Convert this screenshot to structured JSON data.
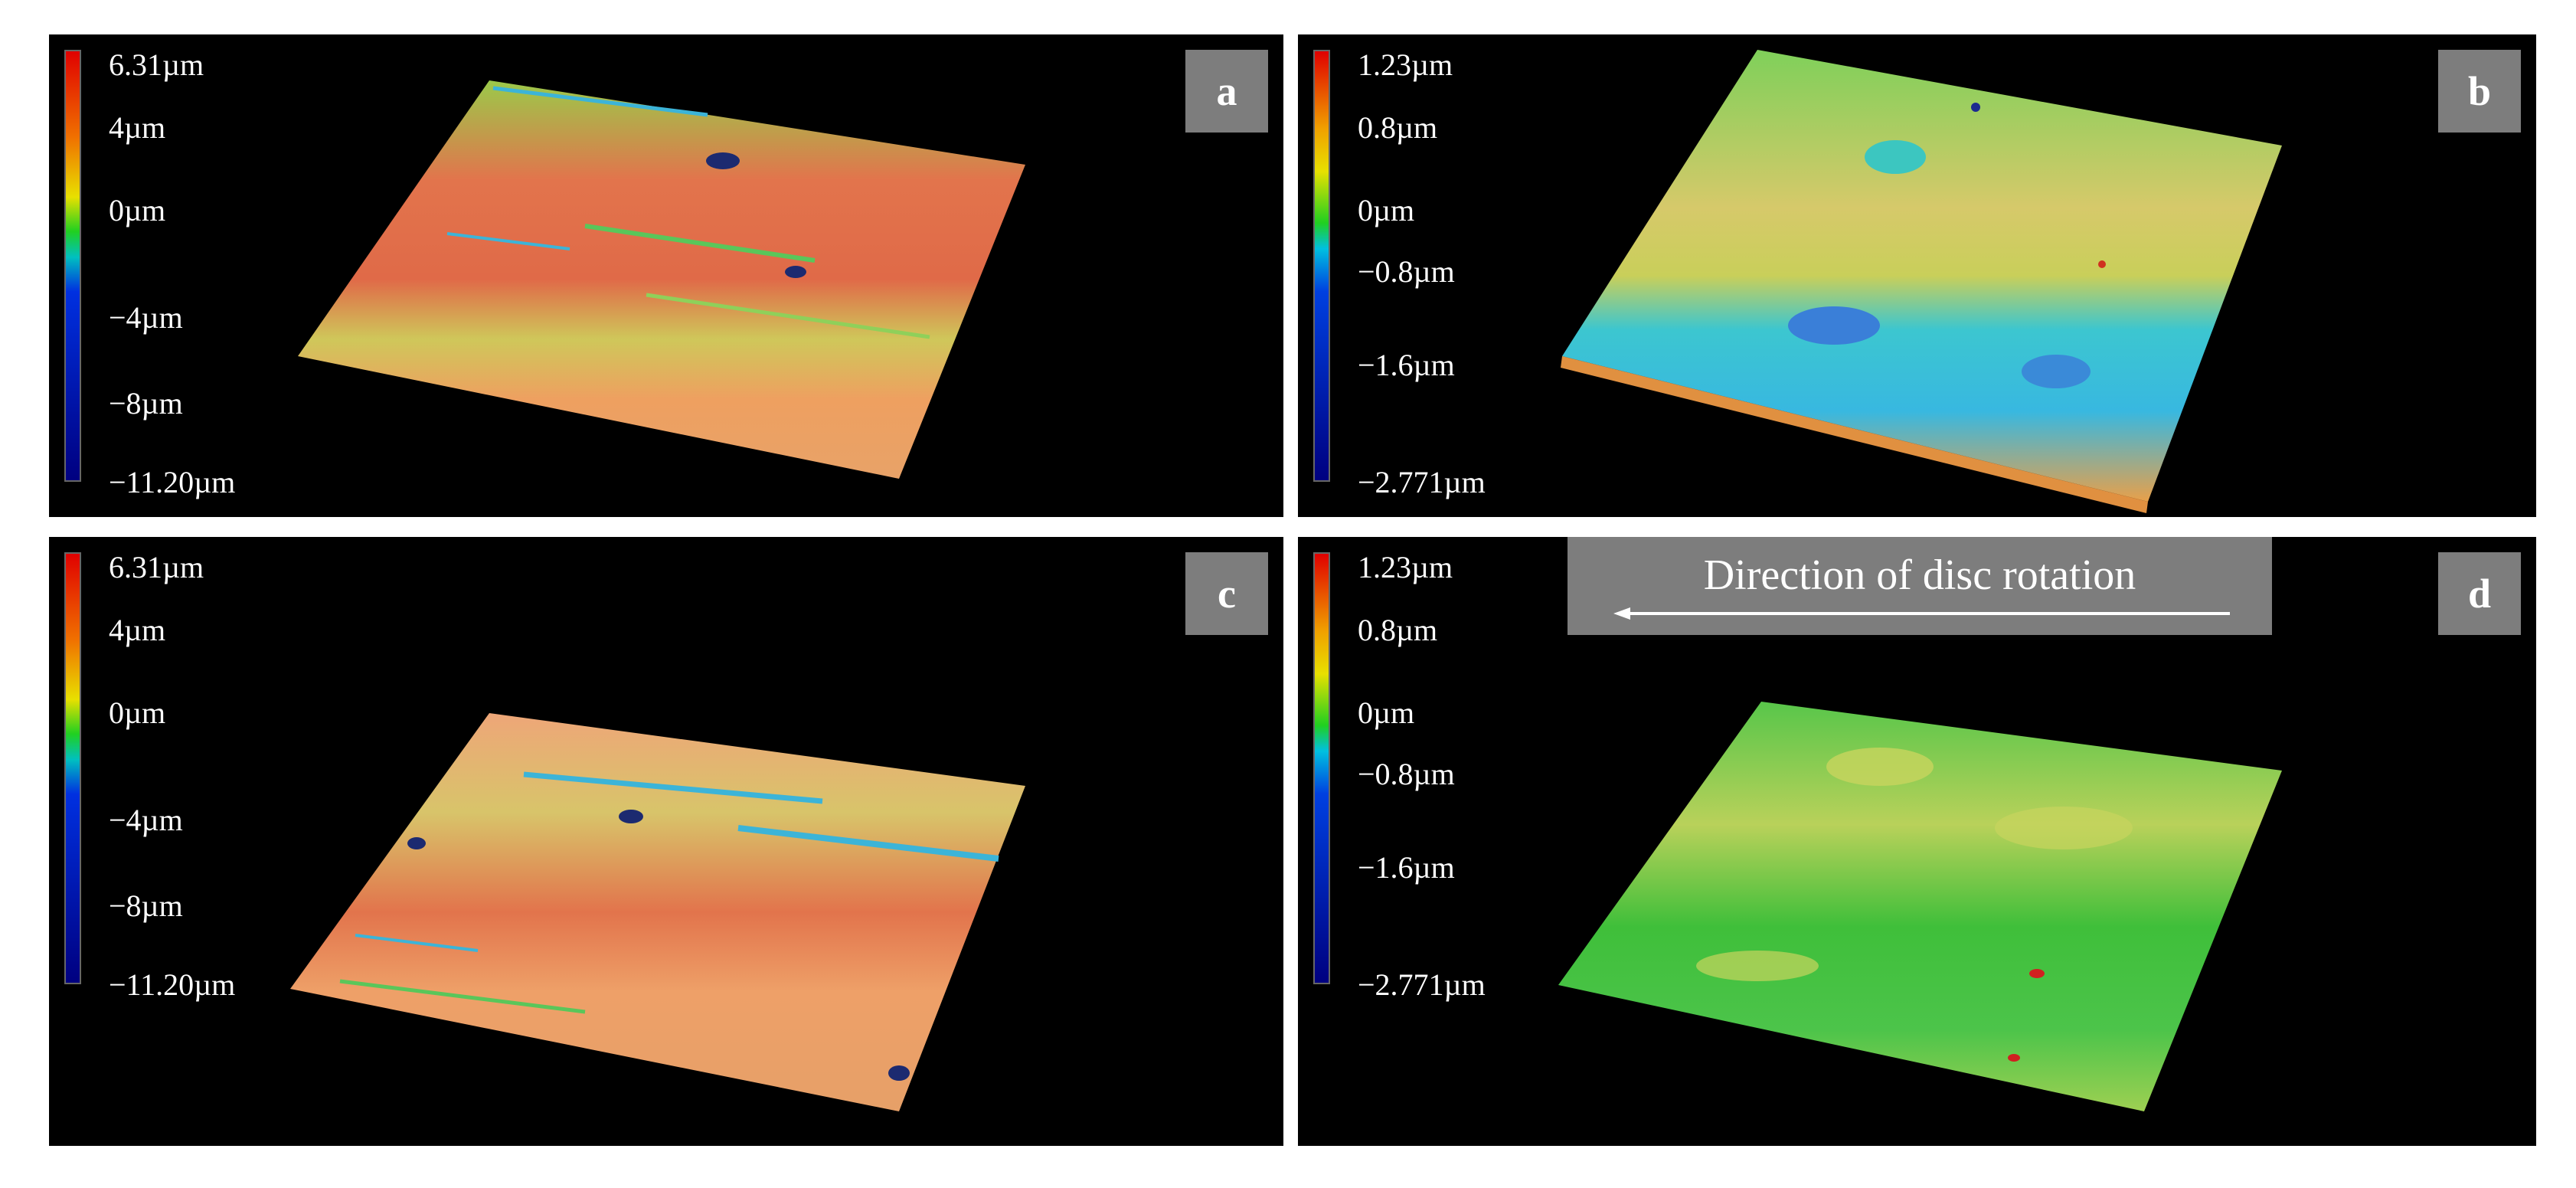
{
  "panels": {
    "a": {
      "letter": "a",
      "scale": [
        "6.31µm",
        "4µm",
        "0µm",
        "−4µm",
        "−8µm",
        "−11.20µm"
      ],
      "dominant_color": "#e8905a"
    },
    "b": {
      "letter": "b",
      "scale": [
        "1.23µm",
        "0.8µm",
        "0µm",
        "−0.8µm",
        "−1.6µm",
        "−2.771µm"
      ],
      "dominant_color": "#9ccf4a"
    },
    "c": {
      "letter": "c",
      "scale": [
        "6.31µm",
        "4µm",
        "0µm",
        "−4µm",
        "−8µm",
        "−11.20µm"
      ],
      "dominant_color": "#e8905a"
    },
    "d": {
      "letter": "d",
      "scale": [
        "1.23µm",
        "0.8µm",
        "0µm",
        "−0.8µm",
        "−1.6µm",
        "−2.771µm"
      ],
      "dominant_color": "#45c040",
      "direction_label": "Direction of disc rotation"
    }
  }
}
